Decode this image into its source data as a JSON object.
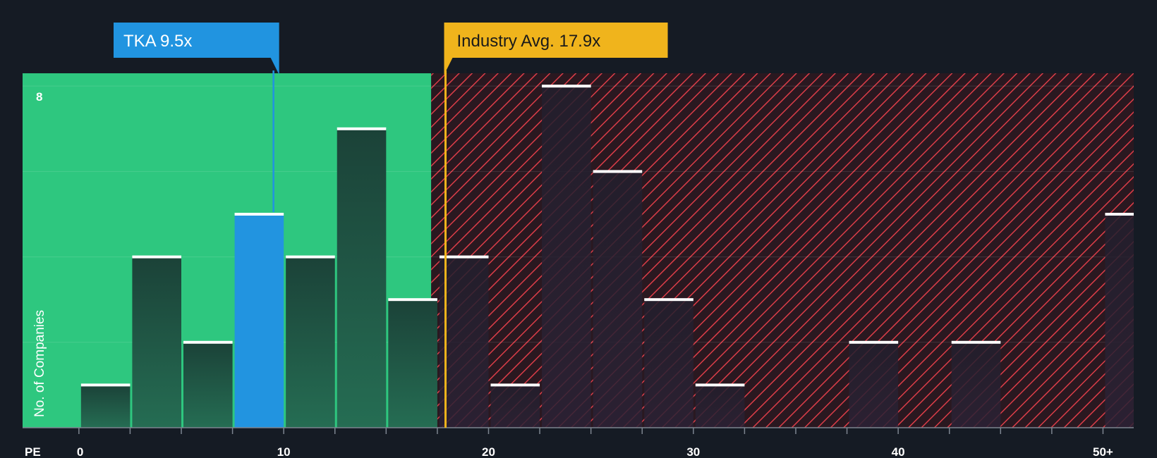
{
  "chart_data": {
    "type": "bar",
    "x_axis_name": "PE",
    "ylabel": "No. of Companies",
    "y_tick_labels": [
      {
        "value": 8,
        "label": "8"
      }
    ],
    "ylim": [
      0,
      8.3
    ],
    "xlim": [
      -2.75,
      51.5
    ],
    "x_ticks": [
      0,
      2.5,
      5,
      7.5,
      10,
      12.5,
      15,
      17.5,
      20,
      22.5,
      25,
      27.5,
      30,
      32.5,
      35,
      37.5,
      40,
      42.5,
      45,
      47.5,
      50
    ],
    "x_tick_labels": [
      {
        "value": 0,
        "label": "0"
      },
      {
        "value": 10,
        "label": "10"
      },
      {
        "value": 20,
        "label": "20"
      },
      {
        "value": 30,
        "label": "30"
      },
      {
        "value": 40,
        "label": "40"
      },
      {
        "value": 50,
        "label": "50+"
      }
    ],
    "bin_width": 2.5,
    "bins": [
      {
        "start": 0,
        "value": 1
      },
      {
        "start": 2.5,
        "value": 4
      },
      {
        "start": 5,
        "value": 2
      },
      {
        "start": 7.5,
        "value": 5,
        "highlight": true
      },
      {
        "start": 10,
        "value": 4
      },
      {
        "start": 12.5,
        "value": 7
      },
      {
        "start": 15,
        "value": 3
      },
      {
        "start": 17.5,
        "value": 4
      },
      {
        "start": 20,
        "value": 1
      },
      {
        "start": 22.5,
        "value": 8
      },
      {
        "start": 25,
        "value": 6
      },
      {
        "start": 27.5,
        "value": 3
      },
      {
        "start": 30,
        "value": 1
      },
      {
        "start": 37.5,
        "value": 2
      },
      {
        "start": 42.5,
        "value": 2
      },
      {
        "start": 50,
        "value": 5
      }
    ],
    "company": {
      "label": "TKA 9.5x",
      "value": 9.5
    },
    "industry_avg": {
      "label": "Industry Avg. 17.9x",
      "value": 17.9
    },
    "fair_zone_end": 17.2,
    "grid": true
  },
  "colors": {
    "background": "#151b24",
    "fair_zone": "#2ec77f",
    "overvalued_zone": "#7a1f28",
    "hatch": "#e0434d",
    "bar_dark": "#1c4a3e",
    "bar_highlight": "#2294e0",
    "bar_over": "#241f2e",
    "bar_cap": "#ffffff",
    "company_callout": "#2194e0",
    "industry_callout": "#f0b41c",
    "grid": "#ffffff"
  }
}
